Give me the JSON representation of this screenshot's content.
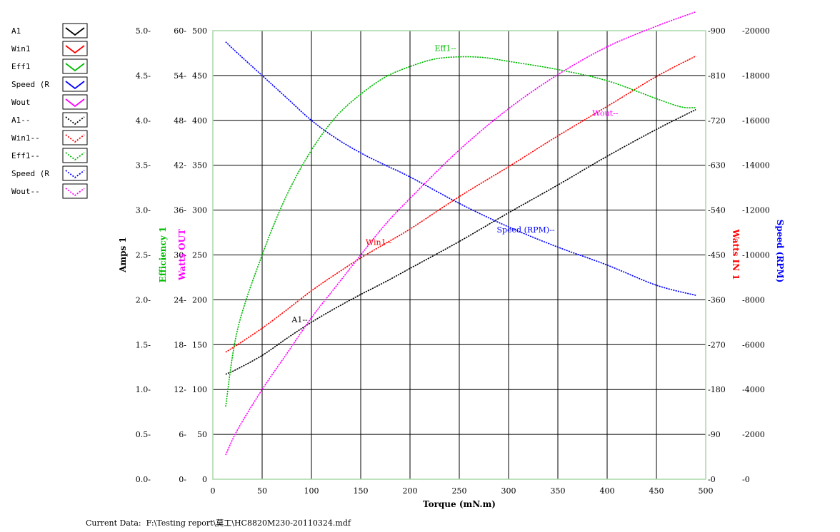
{
  "chart_data": {
    "type": "line",
    "x_axis": {
      "label": "Torque (mN.m)",
      "min": 0,
      "max": 500,
      "ticks": [
        "0",
        "50",
        "100",
        "150",
        "200",
        "250",
        "300",
        "350",
        "400",
        "450",
        "500"
      ]
    },
    "y_axes": {
      "amps": {
        "label": "Amps 1",
        "color": "#000000",
        "min": 0,
        "max": 5,
        "ticks": [
          "0.0-",
          "0.5-",
          "1.0-",
          "1.5-",
          "2.0-",
          "2.5-",
          "3.0-",
          "3.5-",
          "4.0-",
          "4.5-",
          "5.0-"
        ]
      },
      "efficiency": {
        "label": "Efficiency 1",
        "color": "#00bb00",
        "min": 0,
        "max": 60,
        "ticks": [
          "0-",
          "6-",
          "12-",
          "18-",
          "24-",
          "30-",
          "36-",
          "42-",
          "48-",
          "54-",
          "60-"
        ]
      },
      "watts_out": {
        "label": "Watts OUT",
        "color": "#ff00ff",
        "min": 0,
        "max": 500,
        "ticks": [
          "0",
          "50",
          "100",
          "150",
          "200",
          "250",
          "300",
          "350",
          "400",
          "450",
          "500"
        ]
      },
      "watts_in": {
        "label": "Watts IN 1",
        "color": "#ff0000",
        "min": 0,
        "max": 900,
        "ticks": [
          "-0",
          "-90",
          "-180",
          "-270",
          "-360",
          "-450",
          "-540",
          "-630",
          "-720",
          "-810",
          "-900"
        ]
      },
      "speed": {
        "label": "Speed (RPM)",
        "color": "#0000ff",
        "min": 0,
        "max": 20000,
        "ticks": [
          "-0",
          "-2000",
          "-4000",
          "-6000",
          "-8000",
          "-10000",
          "-12000",
          "-14000",
          "-16000",
          "-18000",
          "-20000"
        ]
      }
    },
    "series": [
      {
        "name": "A1--",
        "axis": "amps",
        "color": "#000000",
        "x": [
          13,
          25,
          50,
          75,
          100,
          125,
          150,
          175,
          200,
          250,
          300,
          350,
          400,
          450,
          490
        ],
        "values": [
          1.17,
          1.23,
          1.38,
          1.57,
          1.75,
          1.91,
          2.06,
          2.2,
          2.35,
          2.65,
          2.97,
          3.28,
          3.6,
          3.9,
          4.12
        ]
      },
      {
        "name": "Win1--",
        "axis": "watts_in",
        "color": "#ff0000",
        "x": [
          13,
          25,
          50,
          75,
          100,
          125,
          150,
          175,
          200,
          250,
          300,
          350,
          400,
          450,
          490
        ],
        "values": [
          255,
          270,
          303,
          340,
          378,
          412,
          444,
          473,
          502,
          567,
          627,
          689,
          748,
          808,
          849
        ]
      },
      {
        "name": "Eff1--",
        "axis": "efficiency",
        "color": "#00bb00",
        "x": [
          13,
          25,
          50,
          75,
          100,
          125,
          150,
          175,
          200,
          225,
          250,
          275,
          300,
          350,
          400,
          450,
          475,
          490
        ],
        "values": [
          9.7,
          20,
          30,
          38,
          44,
          48.5,
          51.5,
          53.8,
          55.2,
          56.2,
          56.5,
          56.4,
          55.9,
          54.8,
          53.3,
          50.9,
          49.8,
          49.7
        ]
      },
      {
        "name": "Speed (RPM)--",
        "axis": "speed",
        "color": "#0000ff",
        "x": [
          13,
          25,
          50,
          75,
          100,
          125,
          150,
          175,
          200,
          250,
          300,
          350,
          400,
          450,
          490
        ],
        "values": [
          19500,
          19000,
          18000,
          17000,
          16000,
          15200,
          14550,
          14000,
          13480,
          12300,
          11250,
          10350,
          9550,
          8650,
          8200
        ]
      },
      {
        "name": "Wout--",
        "axis": "watts_out",
        "color": "#ff00ff",
        "x": [
          13,
          25,
          50,
          75,
          100,
          125,
          150,
          175,
          200,
          250,
          300,
          350,
          400,
          450,
          490
        ],
        "values": [
          27,
          55,
          100,
          140,
          180,
          215,
          250,
          284,
          313,
          367,
          413,
          451,
          482,
          505,
          521
        ]
      }
    ],
    "legend": {
      "placement": "left",
      "entries": [
        {
          "label": "A1",
          "color": "#000000",
          "style": "solid"
        },
        {
          "label": "Win1",
          "color": "#ff0000",
          "style": "solid"
        },
        {
          "label": "Eff1",
          "color": "#00bb00",
          "style": "solid"
        },
        {
          "label": "Speed (R",
          "color": "#0000ff",
          "style": "solid"
        },
        {
          "label": "Wout",
          "color": "#ff00ff",
          "style": "solid"
        },
        {
          "label": "A1--",
          "color": "#000000",
          "style": "dotted"
        },
        {
          "label": "Win1--",
          "color": "#ff0000",
          "style": "dotted"
        },
        {
          "label": "Eff1--",
          "color": "#00bb00",
          "style": "dotted"
        },
        {
          "label": "Speed (R",
          "color": "#0000ff",
          "style": "dotted"
        },
        {
          "label": "Wout--",
          "color": "#ff00ff",
          "style": "dotted"
        }
      ]
    },
    "annotations": [
      {
        "text": "A1--",
        "series": "A1--",
        "x": 80,
        "y_axis": "amps",
        "y": 1.75
      },
      {
        "text": "Win1--",
        "series": "Win1--",
        "x": 155,
        "y_axis": "watts_in",
        "y": 470
      },
      {
        "text": "Eff1--",
        "series": "Eff1--",
        "x": 225,
        "y_axis": "efficiency",
        "y": 57.3
      },
      {
        "text": "Speed (RPM)--",
        "series": "Speed (RPM)--",
        "x": 288,
        "y_axis": "speed",
        "y": 11000
      },
      {
        "text": "Wout--",
        "series": "Wout--",
        "x": 385,
        "y_axis": "watts_out",
        "y": 405
      }
    ],
    "grid": true
  },
  "footer": {
    "text": "Current Data:  F:\\Testing report\\莫工\\HC8820M230-20110324.mdf"
  }
}
